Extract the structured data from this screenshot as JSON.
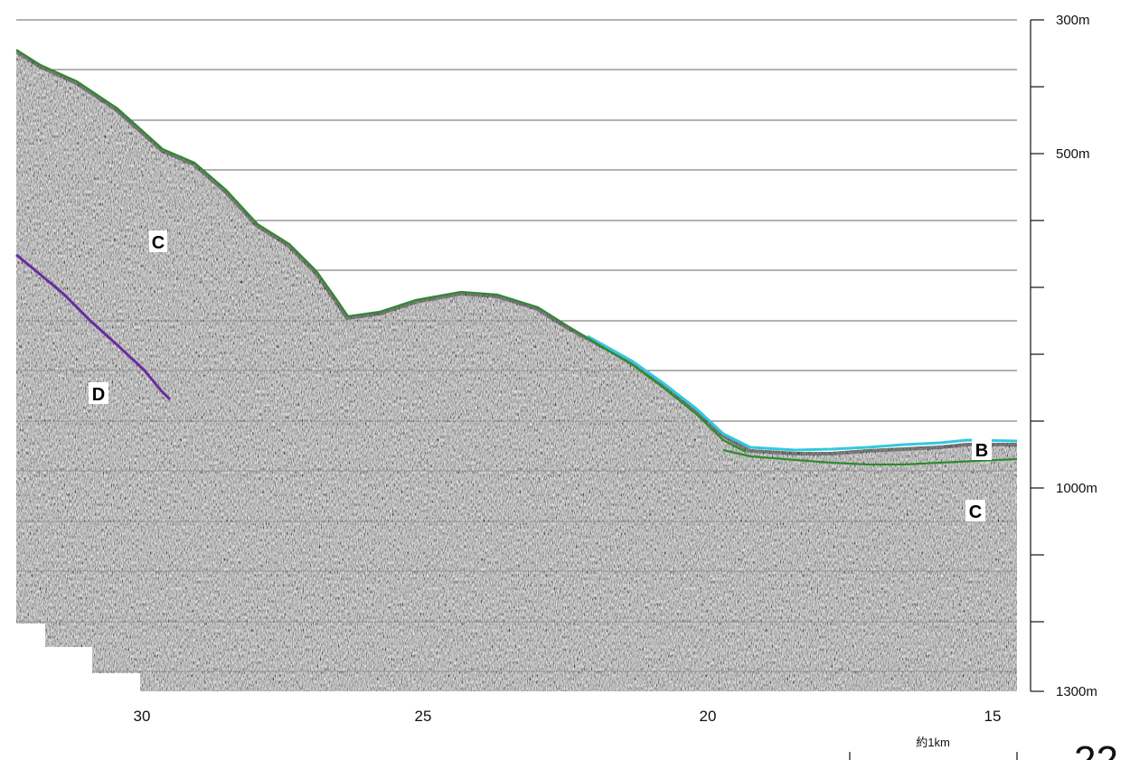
{
  "depth_axis": {
    "labels": [
      "300m",
      "500m",
      "1000m",
      "1300m"
    ]
  },
  "distance_axis": {
    "labels": [
      "30",
      "25",
      "20",
      "15"
    ],
    "scale_label": "約1km"
  },
  "units": {
    "C_upper": "C",
    "D": "D",
    "B": "B",
    "C_lower": "C"
  },
  "page_number": "22",
  "colors": {
    "seafloor_green": "#2e8b2e",
    "surface_cyan": "#33c8dd",
    "reflector_purple": "#6a2ba0",
    "section_gray": "#8f8f8f",
    "grid": "#666666"
  }
}
